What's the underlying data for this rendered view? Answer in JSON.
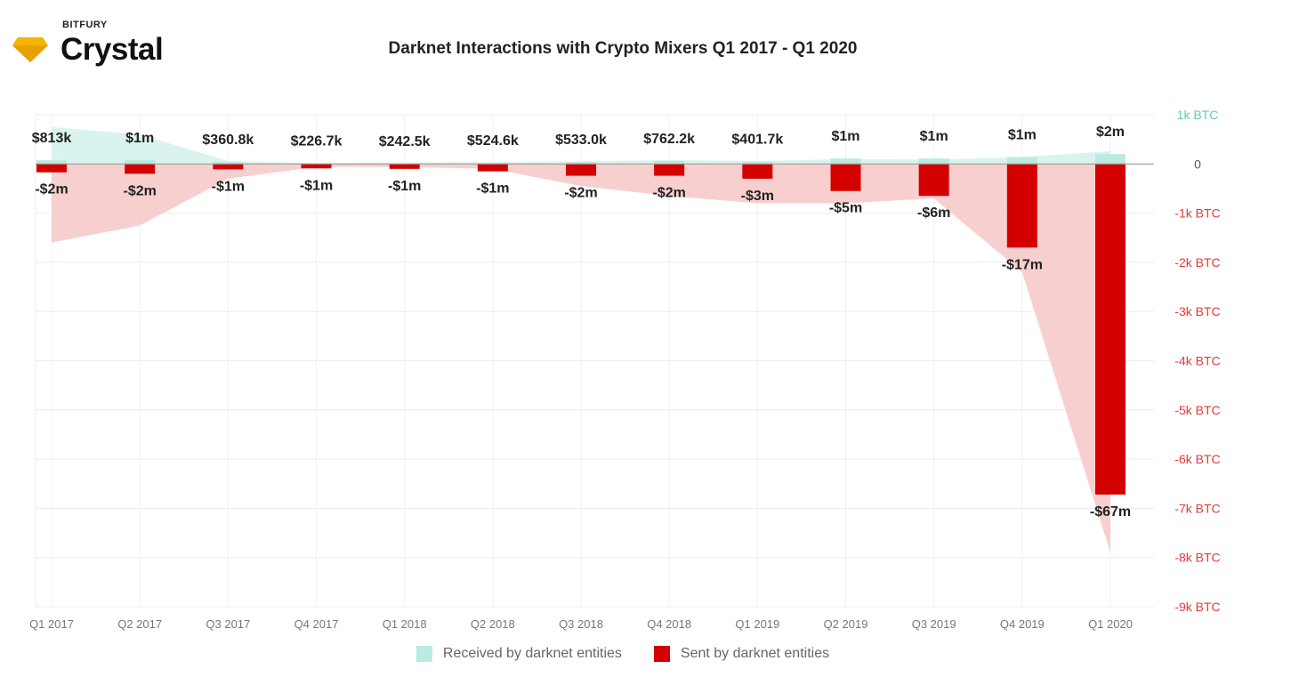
{
  "brand": {
    "company": "BITFURY",
    "product": "Crystal",
    "logo_icon": "diamond-icon"
  },
  "colors": {
    "received": "#b9ebe0",
    "received_area": "#d5f3ec",
    "sent": "#d40000",
    "sent_area": "#f7c7c7",
    "axis_pos": "#5ccdb0",
    "axis_neg": "#e13b3b",
    "axis_zero": "#555555"
  },
  "chart_data": {
    "type": "bar",
    "title": "Darknet Interactions with Crypto Mixers Q1 2017 - Q1 2020",
    "categories": [
      "Q1 2017",
      "Q2 2017",
      "Q3 2017",
      "Q4 2017",
      "Q1 2018",
      "Q2 2018",
      "Q3 2018",
      "Q4 2018",
      "Q1 2019",
      "Q2 2019",
      "Q3 2019",
      "Q4 2019",
      "Q1 2020"
    ],
    "series": [
      {
        "name": "Received by darknet entities",
        "values": [
          75,
          80,
          40,
          10,
          5,
          20,
          40,
          60,
          50,
          110,
          110,
          140,
          200
        ],
        "area_values": [
          750,
          600,
          60,
          20,
          30,
          40,
          50,
          80,
          60,
          100,
          90,
          140,
          260
        ],
        "labels": [
          "$813k",
          "$1m",
          "$360.8k",
          "$226.7k",
          "$242.5k",
          "$524.6k",
          "$533.0k",
          "$762.2k",
          "$401.7k",
          "$1m",
          "$1m",
          "$1m",
          "$2m"
        ]
      },
      {
        "name": "Sent by darknet entities",
        "values": [
          -170,
          -200,
          -110,
          -90,
          -100,
          -150,
          -240,
          -240,
          -300,
          -550,
          -650,
          -1700,
          -6720
        ],
        "area_values": [
          -1600,
          -1250,
          -300,
          -60,
          -60,
          -100,
          -450,
          -650,
          -800,
          -800,
          -700,
          -2200,
          -7900
        ],
        "labels": [
          "-$2m",
          "-$2m",
          "-$1m",
          "-$1m",
          "-$1m",
          "-$1m",
          "-$2m",
          "-$2m",
          "-$3m",
          "-$5m",
          "-$6m",
          "-$17m",
          "-$67m"
        ]
      }
    ],
    "y_ticks": [
      1000,
      0,
      -1000,
      -2000,
      -3000,
      -4000,
      -5000,
      -6000,
      -7000,
      -8000,
      -9000
    ],
    "y_tick_labels": [
      "1k BTC",
      "0",
      "-1k BTC",
      "-2k BTC",
      "-3k BTC",
      "-4k BTC",
      "-5k BTC",
      "-6k BTC",
      "-7k BTC",
      "-8k BTC",
      "-9k BTC"
    ],
    "ylim": [
      -9000,
      1000
    ],
    "grid": true,
    "legend_position": "bottom-center"
  },
  "legend": [
    {
      "label": "Received by darknet entities"
    },
    {
      "label": "Sent by darknet entities"
    }
  ]
}
